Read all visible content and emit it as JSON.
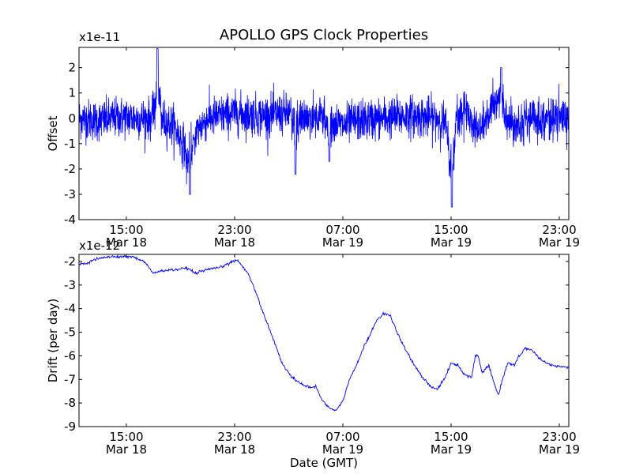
{
  "figure_title": "APOLLO GPS Clock Properties",
  "colors": {
    "series": "#0000ff",
    "axes": "#000000",
    "background": "#ffffff"
  },
  "chart_data": [
    {
      "type": "line",
      "name": "offset",
      "title": "APOLLO GPS Clock Properties",
      "ylabel": "Offset",
      "xlabel": "",
      "scale_label": "x1e-11",
      "ylim": [
        -4,
        2.8
      ],
      "yticks": [
        -4,
        -3,
        -2,
        -1,
        0,
        1,
        2
      ],
      "x_hours_range": [
        11.5,
        47.7
      ],
      "xticks": [
        {
          "h": 15,
          "time": "15:00",
          "date": "Mar 18"
        },
        {
          "h": 23,
          "time": "23:00",
          "date": "Mar 18"
        },
        {
          "h": 31,
          "time": "07:00",
          "date": "Mar 19"
        },
        {
          "h": 39,
          "time": "15:00",
          "date": "Mar 19"
        },
        {
          "h": 47,
          "time": "23:00",
          "date": "Mar 19"
        }
      ],
      "noise_amplitude": 0.4,
      "baseline": [
        [
          11.5,
          0.0
        ],
        [
          13.0,
          -0.1
        ],
        [
          14.5,
          0.05
        ],
        [
          16.0,
          0.0
        ],
        [
          17.5,
          0.0
        ],
        [
          18.5,
          -0.3
        ],
        [
          19.5,
          -1.3
        ],
        [
          20.2,
          -0.5
        ],
        [
          21.0,
          0.0
        ],
        [
          23.0,
          0.2
        ],
        [
          25.0,
          0.1
        ],
        [
          27.0,
          0.2
        ],
        [
          28.5,
          0.0
        ],
        [
          29.5,
          0.1
        ],
        [
          31.0,
          -0.3
        ],
        [
          32.0,
          -0.1
        ],
        [
          34.0,
          0.0
        ],
        [
          36.0,
          0.1
        ],
        [
          38.0,
          0.0
        ],
        [
          39.0,
          -0.4
        ],
        [
          40.0,
          0.4
        ],
        [
          41.0,
          -0.5
        ],
        [
          42.5,
          0.6
        ],
        [
          43.5,
          -0.2
        ],
        [
          45.0,
          0.0
        ],
        [
          47.7,
          0.0
        ]
      ],
      "spikes": [
        [
          17.3,
          2.75
        ],
        [
          19.7,
          -3.0
        ],
        [
          27.5,
          -2.2
        ],
        [
          30.0,
          -1.7
        ],
        [
          38.9,
          -1.6
        ],
        [
          39.05,
          -3.5
        ],
        [
          42.7,
          2.0
        ]
      ]
    },
    {
      "type": "line",
      "name": "drift",
      "ylabel": "Drift (per day)",
      "xlabel": "Date (GMT)",
      "scale_label": "x1e-12",
      "ylim": [
        -9,
        -1.7
      ],
      "yticks": [
        -9,
        -8,
        -7,
        -6,
        -5,
        -4,
        -3,
        -2
      ],
      "x_hours_range": [
        11.5,
        47.7
      ],
      "xticks": [
        {
          "h": 15,
          "time": "15:00",
          "date": "Mar 18"
        },
        {
          "h": 23,
          "time": "23:00",
          "date": "Mar 18"
        },
        {
          "h": 31,
          "time": "07:00",
          "date": "Mar 19"
        },
        {
          "h": 39,
          "time": "15:00",
          "date": "Mar 19"
        },
        {
          "h": 47,
          "time": "23:00",
          "date": "Mar 19"
        }
      ],
      "points": [
        [
          11.5,
          -2.1
        ],
        [
          12.0,
          -2.1
        ],
        [
          13.0,
          -1.85
        ],
        [
          14.0,
          -1.8
        ],
        [
          15.5,
          -1.8
        ],
        [
          16.3,
          -2.0
        ],
        [
          17.0,
          -2.5
        ],
        [
          17.6,
          -2.4
        ],
        [
          18.5,
          -2.35
        ],
        [
          19.5,
          -2.3
        ],
        [
          20.1,
          -2.5
        ],
        [
          21.0,
          -2.35
        ],
        [
          22.0,
          -2.25
        ],
        [
          22.8,
          -2.0
        ],
        [
          23.2,
          -1.95
        ],
        [
          24.0,
          -2.5
        ],
        [
          24.5,
          -3.2
        ],
        [
          25.0,
          -4.0
        ],
        [
          25.8,
          -5.2
        ],
        [
          26.5,
          -6.3
        ],
        [
          27.2,
          -6.9
        ],
        [
          28.0,
          -7.2
        ],
        [
          28.5,
          -7.35
        ],
        [
          29.0,
          -7.3
        ],
        [
          29.5,
          -7.9
        ],
        [
          30.0,
          -8.2
        ],
        [
          30.5,
          -8.35
        ],
        [
          31.0,
          -7.9
        ],
        [
          31.5,
          -7.0
        ],
        [
          32.0,
          -6.4
        ],
        [
          32.5,
          -5.7
        ],
        [
          33.0,
          -5.1
        ],
        [
          33.5,
          -4.5
        ],
        [
          34.0,
          -4.2
        ],
        [
          34.5,
          -4.3
        ],
        [
          35.0,
          -5.0
        ],
        [
          35.5,
          -5.6
        ],
        [
          36.0,
          -6.1
        ],
        [
          36.5,
          -6.6
        ],
        [
          37.0,
          -7.0
        ],
        [
          37.5,
          -7.3
        ],
        [
          38.0,
          -7.4
        ],
        [
          38.5,
          -7.0
        ],
        [
          39.0,
          -6.3
        ],
        [
          39.5,
          -6.4
        ],
        [
          40.0,
          -6.8
        ],
        [
          40.5,
          -6.9
        ],
        [
          40.8,
          -6.0
        ],
        [
          41.0,
          -6.0
        ],
        [
          41.3,
          -6.7
        ],
        [
          41.8,
          -6.4
        ],
        [
          42.2,
          -7.2
        ],
        [
          42.5,
          -7.7
        ],
        [
          42.8,
          -7.0
        ],
        [
          43.2,
          -6.3
        ],
        [
          43.7,
          -6.4
        ],
        [
          44.0,
          -6.0
        ],
        [
          44.5,
          -5.7
        ],
        [
          45.0,
          -5.75
        ],
        [
          45.5,
          -6.1
        ],
        [
          46.0,
          -6.3
        ],
        [
          46.5,
          -6.4
        ],
        [
          47.0,
          -6.45
        ],
        [
          47.7,
          -6.5
        ]
      ]
    }
  ]
}
